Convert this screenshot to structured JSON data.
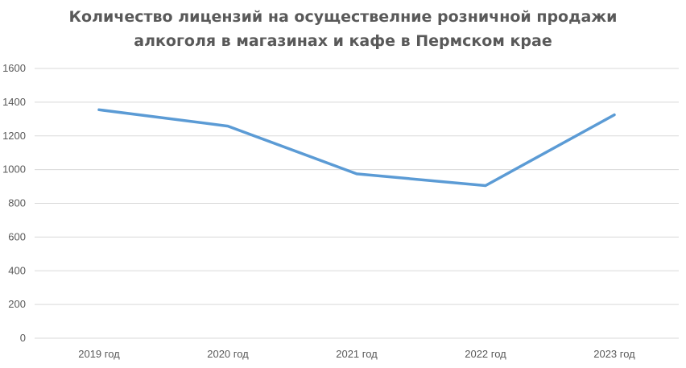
{
  "chart_data": {
    "type": "line",
    "title_lines": [
      "Количество лицензий на осуществелние розничной продажи",
      "алкоголя в магазинах и кафе в Пермском крае"
    ],
    "categories": [
      "2019 год",
      "2020 год",
      "2021 год",
      "2022 год",
      "2023 год"
    ],
    "series": [
      {
        "values": [
          1355,
          1258,
          975,
          905,
          1325
        ],
        "color": "#5B9BD5"
      }
    ],
    "ylim": [
      0,
      1600
    ],
    "yticks": [
      0,
      200,
      400,
      600,
      800,
      1000,
      1200,
      1400,
      1600
    ],
    "grid": true,
    "xlabel": "",
    "ylabel": ""
  }
}
